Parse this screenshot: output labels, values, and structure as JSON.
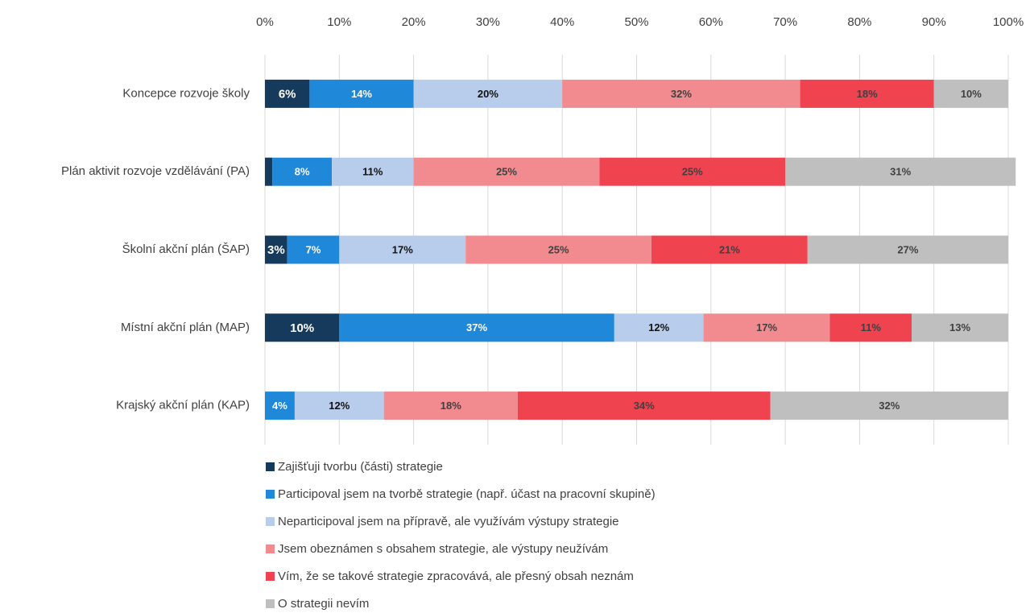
{
  "chart_data": {
    "type": "stacked-barh",
    "categories": [
      "Koncepce rozvoje školy",
      "Plán aktivit rozvoje vzdělávání (PA)",
      "Školní akční plán (ŠAP)",
      "Místní akční plán (MAP)",
      "Krajský akční plán (KAP)"
    ],
    "series": [
      {
        "name": "Zajišťuji tvorbu (části) strategie",
        "color": "#163a5c",
        "values": [
          6,
          1,
          3,
          10,
          0
        ],
        "value_labels": [
          "6%",
          null,
          "3%",
          "10%",
          null
        ]
      },
      {
        "name": "Participoval jsem na tvorbě strategie (např. účast na pracovní skupině)",
        "color": "#1f88d9",
        "values": [
          14,
          8,
          7,
          37,
          4
        ],
        "value_labels": [
          "14%",
          "8%",
          "7%",
          "37%",
          "4%"
        ]
      },
      {
        "name": "Neparticipoval jsem na přípravě, ale využívám výstupy strategie",
        "color": "#b8cdeb",
        "values": [
          20,
          11,
          17,
          12,
          12
        ],
        "value_labels": [
          "20%",
          "11%",
          "17%",
          "12%",
          "12%"
        ]
      },
      {
        "name": "Jsem obeznámen s obsahem strategie, ale výstupy neužívám",
        "color": "#f28b8f",
        "values": [
          32,
          25,
          25,
          17,
          18
        ],
        "value_labels": [
          "32%",
          "25%",
          "25%",
          "17%",
          "18%"
        ]
      },
      {
        "name": "Vím, že se takové strategie zpracovává, ale přesný obsah neznám",
        "color": "#ef4350",
        "values": [
          18,
          25,
          21,
          11,
          34
        ],
        "value_labels": [
          "18%",
          "25%",
          "21%",
          "11%",
          "34%"
        ]
      },
      {
        "name": "O strategii nevím",
        "color": "#bfbfbf",
        "values": [
          10,
          31,
          27,
          13,
          32
        ],
        "value_labels": [
          "10%",
          "31%",
          "27%",
          "13%",
          "32%"
        ]
      }
    ],
    "xlim": [
      0,
      100
    ],
    "xticks": [
      {
        "value": 0,
        "label": "0%"
      },
      {
        "value": 10,
        "label": "10%"
      },
      {
        "value": 20,
        "label": "20%"
      },
      {
        "value": 30,
        "label": "30%"
      },
      {
        "value": 40,
        "label": "40%"
      },
      {
        "value": 50,
        "label": "50%"
      },
      {
        "value": 60,
        "label": "60%"
      },
      {
        "value": 70,
        "label": "70%"
      },
      {
        "value": 80,
        "label": "80%"
      },
      {
        "value": 90,
        "label": "90%"
      },
      {
        "value": 100,
        "label": "100%"
      }
    ],
    "grid": true,
    "legend": "bottom"
  }
}
